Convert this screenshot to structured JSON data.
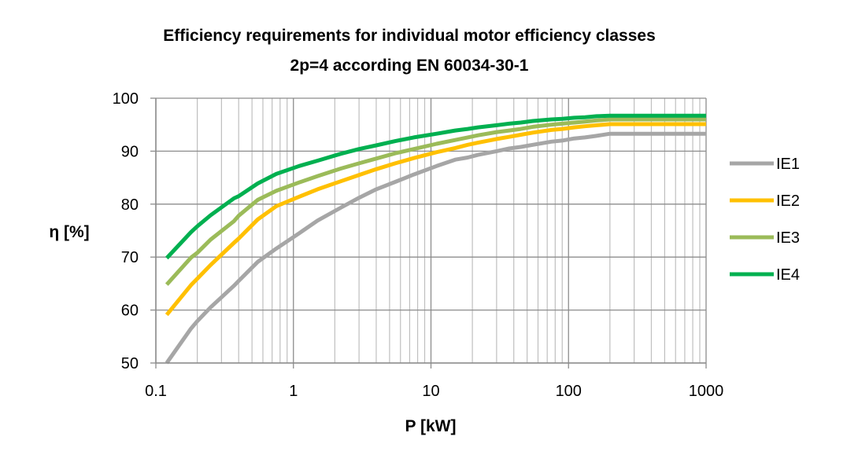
{
  "chart_data": {
    "type": "line",
    "title": "Efficiency requirements for individual motor efficiency classes",
    "subtitle": "2p=4 according EN 60034-30-1",
    "xlabel": "P [kW]",
    "ylabel": "η [%]",
    "xscale": "log",
    "xlim": [
      0.1,
      1000
    ],
    "ylim": [
      50,
      100
    ],
    "xticks": [
      "0.1",
      "1",
      "10",
      "100",
      "1000"
    ],
    "yticks": [
      "50",
      "60",
      "70",
      "80",
      "90",
      "100"
    ],
    "grid": true,
    "legend_position": "right",
    "series": [
      {
        "name": "IE1",
        "color": "#a6a6a6",
        "x": [
          0.12,
          0.18,
          0.2,
          0.25,
          0.37,
          0.4,
          0.55,
          0.75,
          1.1,
          1.5,
          2.2,
          3,
          4,
          5.5,
          7.5,
          11,
          15,
          18.5,
          22,
          30,
          37,
          45,
          55,
          75,
          90,
          110,
          132,
          160,
          200,
          1000
        ],
        "values": [
          50.0,
          56.5,
          57.9,
          60.5,
          64.6,
          65.5,
          69.1,
          71.6,
          74.5,
          76.9,
          79.3,
          81.2,
          82.8,
          84.2,
          85.6,
          87.2,
          88.4,
          88.8,
          89.3,
          90.0,
          90.5,
          90.8,
          91.2,
          91.8,
          92.0,
          92.4,
          92.6,
          92.9,
          93.3,
          93.3
        ]
      },
      {
        "name": "IE2",
        "color": "#ffc000",
        "x": [
          0.12,
          0.18,
          0.2,
          0.25,
          0.37,
          0.4,
          0.55,
          0.75,
          1.1,
          1.5,
          2.2,
          3,
          4,
          5.5,
          7.5,
          11,
          15,
          18.5,
          22,
          30,
          37,
          45,
          55,
          75,
          90,
          110,
          132,
          160,
          200,
          1000
        ],
        "values": [
          59.1,
          64.7,
          65.9,
          68.5,
          72.7,
          73.5,
          77.1,
          79.6,
          81.4,
          82.8,
          84.3,
          85.5,
          86.6,
          87.7,
          88.7,
          89.8,
          90.6,
          91.2,
          91.6,
          92.3,
          92.7,
          93.1,
          93.5,
          94.0,
          94.2,
          94.5,
          94.7,
          94.9,
          95.1,
          95.1
        ]
      },
      {
        "name": "IE3",
        "color": "#9bbb59",
        "x": [
          0.12,
          0.18,
          0.2,
          0.25,
          0.37,
          0.4,
          0.55,
          0.75,
          1.1,
          1.5,
          2.2,
          3,
          4,
          5.5,
          7.5,
          11,
          15,
          18.5,
          22,
          30,
          37,
          45,
          55,
          75,
          90,
          110,
          132,
          160,
          200,
          1000
        ],
        "values": [
          64.8,
          69.9,
          70.8,
          73.3,
          76.8,
          77.8,
          80.8,
          82.5,
          84.1,
          85.3,
          86.7,
          87.7,
          88.6,
          89.6,
          90.4,
          91.4,
          92.1,
          92.6,
          93.0,
          93.6,
          93.9,
          94.2,
          94.6,
          95.0,
          95.2,
          95.4,
          95.6,
          95.8,
          96.0,
          96.0
        ]
      },
      {
        "name": "IE4",
        "color": "#00b050",
        "x": [
          0.12,
          0.18,
          0.2,
          0.25,
          0.37,
          0.4,
          0.55,
          0.75,
          1.1,
          1.5,
          2.2,
          3,
          4,
          5.5,
          7.5,
          11,
          15,
          18.5,
          22,
          30,
          37,
          45,
          55,
          75,
          90,
          110,
          132,
          160,
          200,
          1000
        ],
        "values": [
          69.8,
          74.7,
          75.8,
          77.9,
          81.1,
          81.5,
          83.9,
          85.7,
          87.2,
          88.2,
          89.5,
          90.4,
          91.1,
          91.9,
          92.6,
          93.3,
          93.9,
          94.2,
          94.5,
          94.9,
          95.2,
          95.4,
          95.7,
          96.0,
          96.1,
          96.3,
          96.4,
          96.6,
          96.7,
          96.7
        ]
      }
    ]
  }
}
